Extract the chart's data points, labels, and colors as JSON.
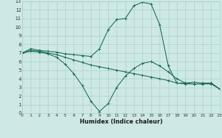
{
  "xlabel": "Humidex (Indice chaleur)",
  "x_ticks": [
    0,
    1,
    2,
    3,
    4,
    5,
    6,
    7,
    8,
    9,
    10,
    11,
    12,
    13,
    14,
    15,
    16,
    17,
    18,
    19,
    20,
    21,
    22,
    23
  ],
  "ylim": [
    0,
    13
  ],
  "xlim": [
    0,
    23
  ],
  "y_ticks": [
    0,
    1,
    2,
    3,
    4,
    5,
    6,
    7,
    8,
    9,
    10,
    11,
    12,
    13
  ],
  "bg_color": "#cde8e5",
  "grid_color": "#a8d0cc",
  "line_color": "#1a6b5a",
  "line1_x": [
    0,
    1,
    2,
    3,
    4,
    5,
    6,
    7,
    8,
    9,
    10,
    11,
    12,
    13,
    14,
    15,
    16,
    17,
    18,
    19,
    20,
    21,
    22,
    23
  ],
  "line1_y": [
    7.0,
    7.5,
    7.3,
    7.2,
    7.1,
    6.9,
    6.8,
    6.7,
    6.6,
    7.5,
    9.7,
    10.9,
    11.0,
    12.5,
    12.9,
    12.7,
    10.3,
    5.5,
    3.5,
    3.5,
    3.6,
    3.5,
    3.5,
    2.8
  ],
  "line2_x": [
    0,
    1,
    2,
    3,
    4,
    5,
    6,
    7,
    8,
    9,
    10,
    11,
    12,
    13,
    14,
    15,
    16,
    17,
    18,
    19,
    20,
    21,
    22,
    23
  ],
  "line2_y": [
    7.0,
    7.3,
    7.2,
    7.0,
    6.8,
    6.5,
    6.2,
    5.9,
    5.6,
    5.4,
    5.2,
    5.0,
    4.8,
    4.6,
    4.4,
    4.2,
    4.0,
    3.8,
    3.5,
    3.4,
    3.4,
    3.4,
    3.4,
    2.8
  ],
  "line3_x": [
    0,
    1,
    2,
    3,
    4,
    5,
    6,
    7,
    8,
    9,
    10,
    11,
    12,
    13,
    14,
    15,
    16,
    17,
    18,
    19,
    20,
    21,
    22,
    23
  ],
  "line3_y": [
    7.0,
    7.2,
    7.1,
    6.9,
    6.5,
    5.7,
    4.6,
    3.2,
    1.4,
    0.2,
    1.1,
    3.0,
    4.3,
    5.2,
    5.8,
    6.0,
    5.5,
    4.8,
    4.0,
    3.5,
    3.4,
    3.4,
    3.5,
    2.8
  ]
}
